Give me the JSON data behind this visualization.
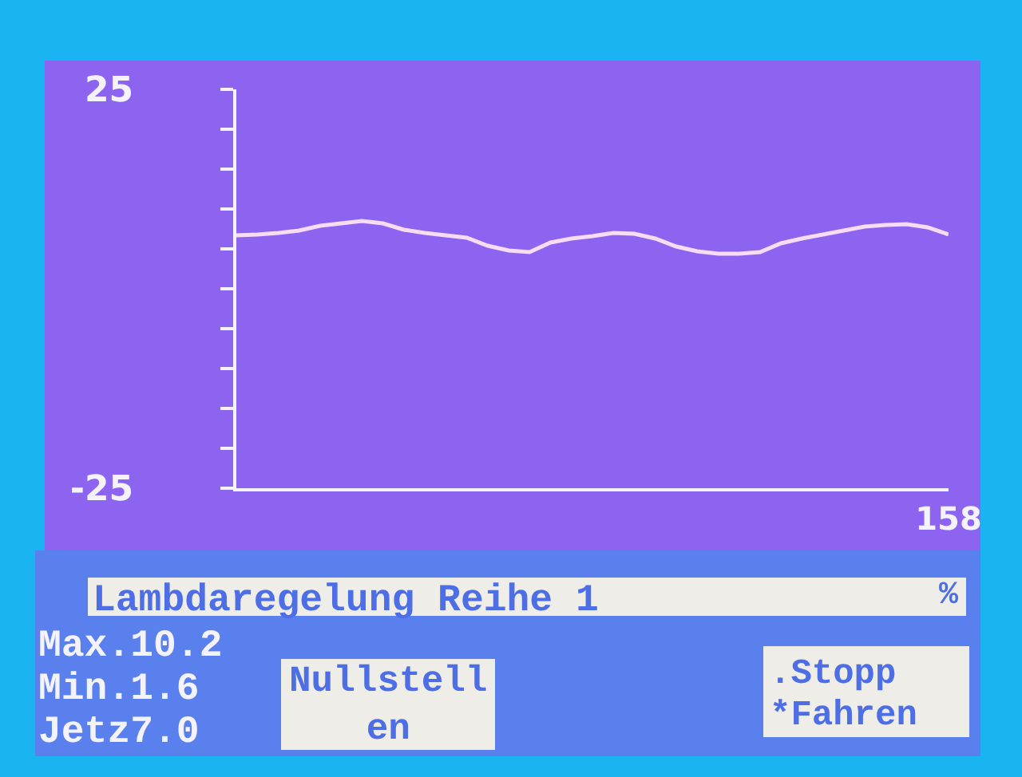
{
  "chart_data": {
    "type": "line",
    "title": "Lambdaregelung Reihe 1",
    "ylabel": "%",
    "categories": [
      null,
      null,
      null,
      null,
      null,
      null,
      null,
      null,
      null,
      null,
      null,
      null,
      null,
      null,
      null,
      null,
      null,
      null,
      null,
      null,
      null,
      null,
      null,
      null,
      null,
      null,
      null,
      null,
      null,
      null,
      null,
      null,
      null,
      null,
      "158"
    ],
    "series": [
      {
        "color": "#f8dcf6",
        "values": [
          6.7,
          6.8,
          7.0,
          7.3,
          7.9,
          8.2,
          8.5,
          8.2,
          7.4,
          7.0,
          6.7,
          6.4,
          5.4,
          4.8,
          4.6,
          5.8,
          6.3,
          6.6,
          7.0,
          6.9,
          6.3,
          5.3,
          4.7,
          4.4,
          4.4,
          4.6,
          5.7,
          6.3,
          6.8,
          7.3,
          7.8,
          8.0,
          8.1,
          7.7,
          6.8
        ]
      }
    ],
    "ylim": [
      -25,
      25
    ],
    "yticks": [
      -25,
      {
        "value": -20,
        "label": null
      },
      {
        "value": -15,
        "label": null
      },
      {
        "value": -10,
        "label": null
      },
      {
        "value": -5,
        "label": null
      },
      {
        "value": 0,
        "label": null
      },
      {
        "value": 5,
        "label": null
      },
      {
        "value": 10,
        "label": null
      },
      {
        "value": 15,
        "label": null
      },
      {
        "value": 20,
        "label": null
      },
      25
    ],
    "annotations": [
      "Max.10.2",
      "Min.1.6",
      "Jetz7.0",
      "Nullstellen",
      ".Stopp",
      "*Fahren"
    ]
  }
}
